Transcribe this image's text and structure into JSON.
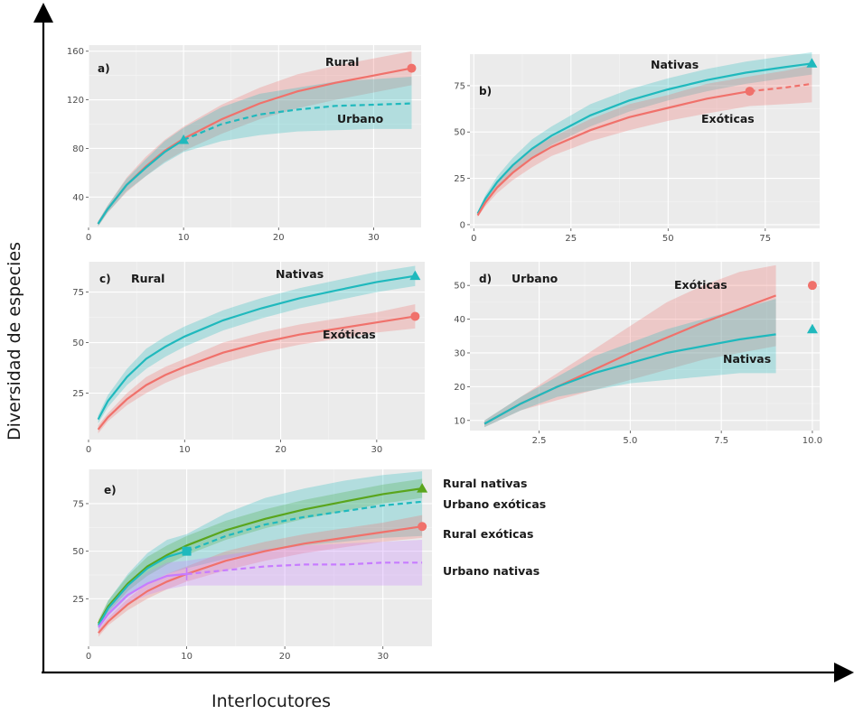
{
  "figure": {
    "ylabel": "Diversidad de especies",
    "xlabel": "Interlocutores"
  },
  "colors": {
    "rural": "#f0716b",
    "urbano": "#1fb9bd",
    "nativas": "#1fb9bd",
    "exoticas": "#f0716b",
    "rural_nativas": "#5aa51c",
    "urbano_exoticas": "#1fb9bd",
    "rural_exoticas": "#f0716b",
    "urbano_nativas": "#c77cff",
    "panel_bg": "#ebebeb",
    "grid": "#ffffff"
  },
  "chart_data": [
    {
      "type": "line",
      "panel": "a)",
      "xlim": [
        0,
        35
      ],
      "ylim": [
        15,
        165
      ],
      "xticks": [
        0,
        10,
        20,
        30
      ],
      "yticks": [
        40,
        80,
        120,
        160
      ],
      "annotations": [
        "Rural",
        "Urbano"
      ],
      "series": [
        {
          "name": "Rural",
          "color_key": "rural",
          "x": [
            1,
            2,
            4,
            6,
            8,
            10,
            14,
            18,
            22,
            26,
            30,
            34
          ],
          "y": [
            18,
            30,
            50,
            65,
            78,
            88,
            104,
            117,
            127,
            134,
            140,
            146
          ],
          "lo": [
            16,
            27,
            44,
            57,
            69,
            78,
            92,
            104,
            113,
            120,
            126,
            132
          ],
          "hi": [
            20,
            33,
            56,
            73,
            87,
            98,
            116,
            130,
            141,
            148,
            154,
            160
          ],
          "observed_x": 34,
          "marker": "circle"
        },
        {
          "name": "Urbano",
          "color_key": "urbano",
          "x": [
            1,
            2,
            4,
            6,
            8,
            10,
            14,
            18,
            22,
            26,
            30,
            34
          ],
          "y": [
            18,
            30,
            50,
            64,
            77,
            87,
            100,
            108,
            112,
            115,
            116,
            117
          ],
          "lo": [
            16,
            27,
            45,
            57,
            68,
            77,
            86,
            91,
            94,
            95,
            96,
            96
          ],
          "hi": [
            20,
            33,
            55,
            71,
            86,
            97,
            114,
            125,
            130,
            135,
            137,
            139
          ],
          "observed_x": 10,
          "marker": "triangle"
        }
      ]
    },
    {
      "type": "line",
      "panel": "b)",
      "xlim": [
        -1,
        89
      ],
      "ylim": [
        -2,
        92
      ],
      "xticks": [
        0,
        25,
        50,
        75
      ],
      "yticks": [
        0,
        25,
        50,
        75
      ],
      "annotations": [
        "Nativas",
        "Exóticas"
      ],
      "series": [
        {
          "name": "Nativas",
          "color_key": "nativas",
          "x": [
            1,
            3,
            6,
            10,
            15,
            20,
            30,
            40,
            50,
            60,
            70,
            80,
            87
          ],
          "y": [
            6,
            14,
            23,
            32,
            41,
            48,
            59,
            67,
            73,
            78,
            82,
            85,
            87
          ],
          "lo": [
            5,
            12,
            20,
            28,
            36,
            43,
            53,
            61,
            67,
            72,
            76,
            79,
            81
          ],
          "hi": [
            7,
            16,
            26,
            36,
            46,
            53,
            65,
            73,
            79,
            84,
            88,
            91,
            93
          ],
          "observed_x": 87,
          "marker": "triangle"
        },
        {
          "name": "Exóticas",
          "color_key": "exoticas",
          "x": [
            1,
            3,
            6,
            10,
            15,
            20,
            30,
            40,
            50,
            60,
            71,
            80,
            87
          ],
          "y": [
            5,
            12,
            20,
            28,
            36,
            42,
            51,
            58,
            63,
            68,
            72,
            74,
            76
          ],
          "lo": [
            4,
            10,
            17,
            24,
            31,
            37,
            45,
            51,
            56,
            60,
            64,
            65,
            66
          ],
          "hi": [
            6,
            14,
            23,
            32,
            41,
            47,
            57,
            65,
            70,
            76,
            80,
            83,
            86
          ],
          "observed_x": 71,
          "marker": "circle"
        }
      ]
    },
    {
      "type": "line",
      "panel": "c)",
      "panel_title": "Rural",
      "xlim": [
        0,
        35
      ],
      "ylim": [
        2,
        90
      ],
      "xticks": [
        0,
        10,
        20,
        30
      ],
      "yticks": [
        25,
        50,
        75
      ],
      "annotations": [
        "Nativas",
        "Exóticas"
      ],
      "series": [
        {
          "name": "Nativas",
          "color_key": "nativas",
          "x": [
            1,
            2,
            4,
            6,
            8,
            10,
            14,
            18,
            22,
            26,
            30,
            34
          ],
          "y": [
            12,
            21,
            33,
            42,
            48,
            53,
            61,
            67,
            72,
            76,
            80,
            83
          ],
          "lo": [
            10,
            18,
            29,
            37,
            43,
            48,
            56,
            62,
            67,
            71,
            75,
            78
          ],
          "hi": [
            14,
            24,
            37,
            47,
            53,
            58,
            66,
            72,
            77,
            81,
            85,
            88
          ],
          "observed_x": 34,
          "marker": "triangle"
        },
        {
          "name": "Exóticas",
          "color_key": "exoticas",
          "x": [
            1,
            2,
            4,
            6,
            8,
            10,
            14,
            18,
            22,
            26,
            30,
            34
          ],
          "y": [
            7,
            13,
            22,
            29,
            34,
            38,
            45,
            50,
            54,
            57,
            60,
            63
          ],
          "lo": [
            5,
            11,
            19,
            25,
            30,
            34,
            40,
            45,
            49,
            52,
            55,
            57
          ],
          "hi": [
            9,
            15,
            25,
            33,
            38,
            42,
            50,
            55,
            59,
            62,
            65,
            69
          ],
          "observed_x": 34,
          "marker": "circle"
        }
      ]
    },
    {
      "type": "line",
      "panel": "d)",
      "panel_title": "Urbano",
      "xlim": [
        0.6,
        10.2
      ],
      "ylim": [
        7,
        57
      ],
      "xticks": [
        2.5,
        5.0,
        7.5,
        10.0
      ],
      "yticks": [
        10,
        20,
        30,
        40,
        50
      ],
      "annotations": [
        "Exóticas",
        "Nativas"
      ],
      "series": [
        {
          "name": "Exóticas",
          "color_key": "exoticas",
          "x": [
            1,
            2,
            3,
            4,
            5,
            6,
            7,
            8,
            9
          ],
          "y": [
            9,
            15,
            20,
            25,
            30,
            34.5,
            39,
            43,
            47
          ],
          "lo": [
            8,
            13,
            16,
            19,
            22,
            25,
            28,
            30,
            32
          ],
          "hi": [
            10,
            17,
            24,
            31,
            38,
            45,
            50,
            54,
            56
          ],
          "observed_x": 10,
          "observed_y": 50,
          "marker": "circle"
        },
        {
          "name": "Nativas",
          "color_key": "nativas",
          "x": [
            1,
            2,
            3,
            4,
            5,
            6,
            7,
            8,
            9
          ],
          "y": [
            9,
            15,
            20,
            24,
            27,
            30,
            32,
            34,
            35.5
          ],
          "lo": [
            8,
            13,
            17,
            19,
            21,
            22,
            23,
            24,
            24
          ],
          "hi": [
            10,
            17,
            23,
            29,
            33,
            37,
            40,
            43,
            46
          ],
          "observed_x": 10,
          "observed_y": 37,
          "marker": "triangle"
        }
      ]
    },
    {
      "type": "line",
      "panel": "e)",
      "xlim": [
        0,
        35
      ],
      "ylim": [
        0,
        93
      ],
      "xticks": [
        0,
        10,
        20,
        30
      ],
      "yticks": [
        25,
        50,
        75
      ],
      "annotations": [
        "Rural nativas",
        "Urbano exóticas",
        "Rural exóticas",
        "Urbano nativas"
      ],
      "series": [
        {
          "name": "Rural nativas",
          "color_key": "rural_nativas",
          "x": [
            1,
            2,
            4,
            6,
            8,
            10,
            14,
            18,
            22,
            26,
            30,
            34
          ],
          "y": [
            12,
            21,
            33,
            42,
            48,
            53,
            61,
            67,
            72,
            76,
            80,
            83
          ],
          "lo": [
            10,
            18,
            29,
            37,
            43,
            48,
            56,
            62,
            67,
            71,
            75,
            78
          ],
          "hi": [
            14,
            24,
            37,
            47,
            53,
            58,
            66,
            72,
            77,
            81,
            85,
            88
          ],
          "observed_x": 34,
          "marker": "triangle"
        },
        {
          "name": "Urbano exóticas",
          "color_key": "urbano_exoticas",
          "x": [
            1,
            2,
            4,
            6,
            8,
            10,
            14,
            18,
            22,
            26,
            30,
            34
          ],
          "y": [
            11,
            20,
            32,
            41,
            47,
            50,
            58,
            64,
            68,
            71,
            74,
            76
          ],
          "lo": [
            9,
            16,
            26,
            33,
            38,
            41,
            46,
            50,
            53,
            55,
            57,
            58
          ],
          "hi": [
            13,
            24,
            38,
            49,
            56,
            59,
            70,
            78,
            83,
            87,
            90,
            92
          ],
          "observed_x": 10,
          "marker": "square"
        },
        {
          "name": "Rural exóticas",
          "color_key": "rural_exoticas",
          "x": [
            1,
            2,
            4,
            6,
            8,
            10,
            14,
            18,
            22,
            26,
            30,
            34
          ],
          "y": [
            7,
            13,
            22,
            29,
            34,
            38,
            45,
            50,
            54,
            57,
            60,
            63
          ],
          "lo": [
            5,
            11,
            19,
            25,
            30,
            34,
            40,
            45,
            49,
            52,
            55,
            57
          ],
          "hi": [
            9,
            15,
            25,
            33,
            38,
            42,
            50,
            55,
            59,
            62,
            65,
            69
          ],
          "observed_x": 34,
          "marker": "circle"
        },
        {
          "name": "Urbano nativas",
          "color_key": "urbano_nativas",
          "x": [
            1,
            2,
            4,
            6,
            8,
            10,
            14,
            18,
            22,
            26,
            30,
            34
          ],
          "y": [
            10,
            17,
            27,
            33,
            37,
            38,
            40,
            42,
            43,
            43,
            44,
            44
          ],
          "lo": [
            8,
            14,
            22,
            27,
            30,
            32,
            32,
            32,
            32,
            32,
            32,
            32
          ],
          "hi": [
            12,
            20,
            32,
            39,
            44,
            45,
            48,
            51,
            53,
            54,
            55,
            56
          ],
          "observed_x": 10,
          "marker": "plus"
        }
      ]
    }
  ]
}
